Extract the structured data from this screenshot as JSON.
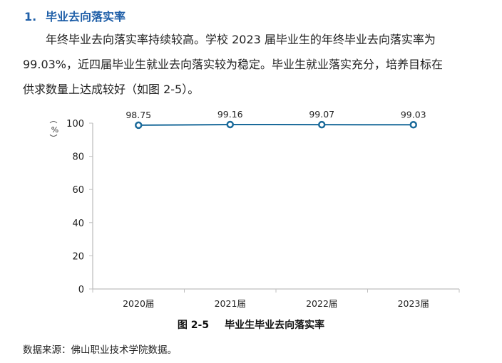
{
  "section": {
    "number": "1.",
    "title": "毕业去向落实率"
  },
  "paragraph": {
    "lines": [
      "年终毕业去向落实率持续较高。学校 2023 届毕业生的年终毕业去向落实率为",
      "99.03%，近四届毕业生就业去向落实较为稳定。毕业生就业落实充分，培养目标在",
      "供求数量上达成较好（如图 2-5）。"
    ]
  },
  "figure": {
    "number": "图 2-5",
    "title": "毕业生毕业去向落实率"
  },
  "source_note": "数据来源：佛山职业技术学院数据。",
  "colors": {
    "heading": "#1f5fa8",
    "series_line": "#1a6a9a",
    "axis": "#bfbfbf"
  },
  "chart_data": {
    "type": "line",
    "title": "毕业生毕业去向落实率",
    "categories": [
      "2020届",
      "2021届",
      "2022届",
      "2023届"
    ],
    "series": [
      {
        "name": "毕业去向落实率",
        "values": [
          98.75,
          99.16,
          99.07,
          99.03
        ]
      }
    ],
    "data_labels": [
      "98.75",
      "99.16",
      "99.07",
      "99.03"
    ],
    "xlabel": "",
    "ylabel": "（%）",
    "ylim": [
      0,
      100
    ],
    "yticks": [
      "0",
      "20",
      "40",
      "60",
      "80",
      "100"
    ],
    "grid": false,
    "legend": "none"
  }
}
